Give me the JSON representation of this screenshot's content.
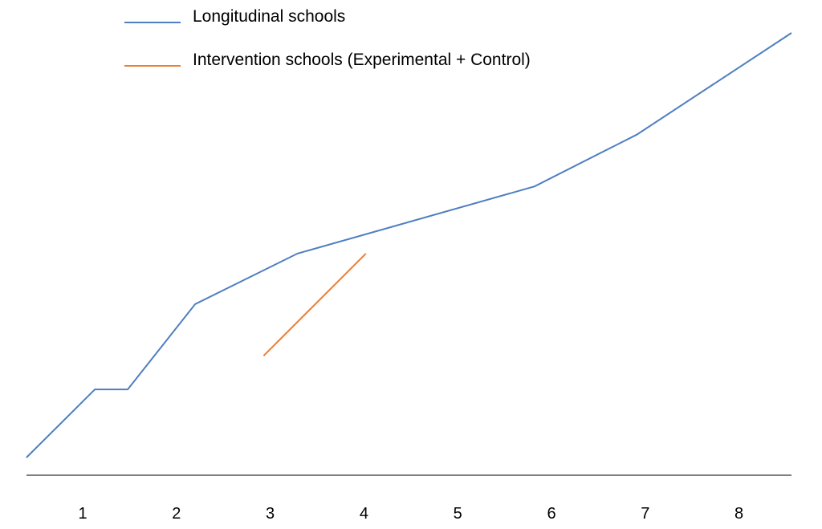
{
  "chart_data": {
    "type": "line",
    "title": "",
    "xlabel": "",
    "ylabel": "",
    "x_ticks": [
      "1",
      "2",
      "3",
      "4",
      "5",
      "6",
      "7",
      "8"
    ],
    "xlim": [
      0.4,
      8.56
    ],
    "ylim": [
      0,
      100
    ],
    "grid": false,
    "legend_position": "top-left",
    "series": [
      {
        "name": "Longitudinal schools",
        "color": "#4f7fc0",
        "x": [
          0.4,
          1.13,
          1.48,
          2.2,
          3.29,
          5.82,
          6.91,
          8.56
        ],
        "y": [
          4,
          19.4,
          19.4,
          38.7,
          50.1,
          65.3,
          77,
          100
        ]
      },
      {
        "name": "Intervention schools (Experimental + Control)",
        "color": "#ed7d31",
        "x": [
          2.93,
          4.02
        ],
        "y": [
          27,
          50.1
        ]
      }
    ]
  }
}
